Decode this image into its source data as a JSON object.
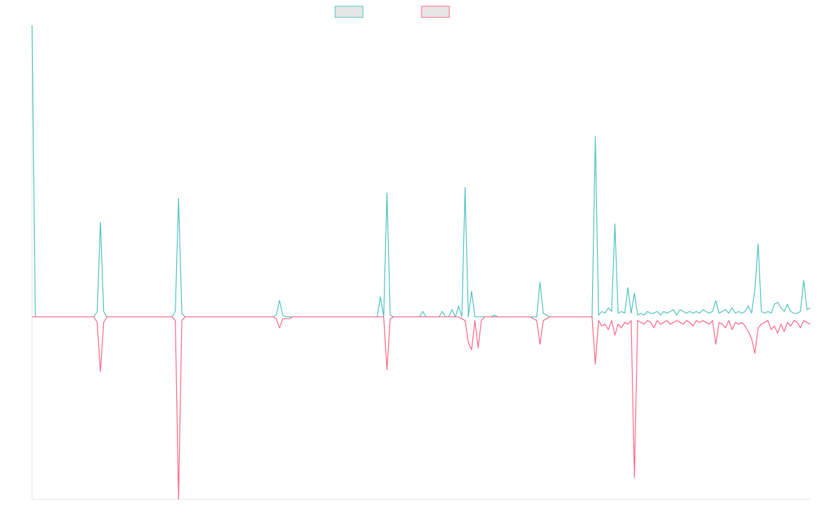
{
  "chart_data": {
    "type": "line",
    "title": "",
    "xlabel": "",
    "ylabel": "",
    "grid": false,
    "legend": {
      "placement": "top-center",
      "entries": [
        {
          "color": "#4bc0c0",
          "fill": "#e6e6e6"
        },
        {
          "color": "#ff6384",
          "fill": "#e6e6e6"
        }
      ]
    },
    "x_count": 240,
    "ylim": [
      -100,
      160
    ],
    "colors": {
      "series_positive": "#4bc0c0",
      "series_negative": "#ff6384",
      "axis": "#e0e0e0"
    },
    "series": [
      {
        "color": "#4bc0c0",
        "points": [
          [
            0,
            160
          ],
          [
            1,
            0
          ],
          [
            19,
            0
          ],
          [
            20,
            3
          ],
          [
            21,
            52
          ],
          [
            22,
            3
          ],
          [
            23,
            0
          ],
          [
            43,
            0
          ],
          [
            44,
            3
          ],
          [
            45,
            65
          ],
          [
            46,
            2
          ],
          [
            47,
            0
          ],
          [
            74,
            0
          ],
          [
            75,
            1
          ],
          [
            76,
            9
          ],
          [
            77,
            1
          ],
          [
            78,
            0
          ],
          [
            106,
            0
          ],
          [
            107,
            11
          ],
          [
            108,
            0
          ],
          [
            109,
            68
          ],
          [
            110,
            1
          ],
          [
            111,
            0
          ],
          [
            119,
            0
          ],
          [
            120,
            3
          ],
          [
            121,
            0
          ],
          [
            125,
            0
          ],
          [
            126,
            3
          ],
          [
            127,
            0
          ],
          [
            128,
            0
          ],
          [
            129,
            4
          ],
          [
            130,
            0
          ],
          [
            131,
            6
          ],
          [
            132,
            0
          ],
          [
            133,
            71
          ],
          [
            134,
            0
          ],
          [
            135,
            14
          ],
          [
            136,
            0
          ],
          [
            141,
            0
          ],
          [
            142,
            1
          ],
          [
            143,
            0
          ],
          [
            153,
            0
          ],
          [
            154,
            0
          ],
          [
            155,
            0
          ],
          [
            156,
            19
          ],
          [
            157,
            2
          ],
          [
            158,
            1
          ],
          [
            159,
            0
          ],
          [
            172,
            0
          ],
          [
            173,
            99
          ],
          [
            174,
            1
          ],
          [
            175,
            3
          ],
          [
            176,
            2
          ],
          [
            177,
            5
          ],
          [
            178,
            3
          ],
          [
            179,
            51
          ],
          [
            180,
            2
          ],
          [
            181,
            3
          ],
          [
            182,
            2
          ],
          [
            183,
            16
          ],
          [
            184,
            2
          ],
          [
            185,
            13
          ],
          [
            186,
            1
          ],
          [
            187,
            2
          ],
          [
            188,
            1
          ],
          [
            189,
            3
          ],
          [
            190,
            2
          ],
          [
            191,
            2
          ],
          [
            192,
            3
          ],
          [
            193,
            1
          ],
          [
            194,
            3
          ],
          [
            195,
            2
          ],
          [
            196,
            3
          ],
          [
            197,
            4
          ],
          [
            198,
            1
          ],
          [
            199,
            4
          ],
          [
            200,
            3
          ],
          [
            201,
            2
          ],
          [
            202,
            3
          ],
          [
            203,
            2
          ],
          [
            204,
            3
          ],
          [
            205,
            2
          ],
          [
            206,
            4
          ],
          [
            207,
            3
          ],
          [
            208,
            2
          ],
          [
            209,
            3
          ],
          [
            210,
            9
          ],
          [
            211,
            2
          ],
          [
            212,
            3
          ],
          [
            213,
            4
          ],
          [
            214,
            2
          ],
          [
            215,
            5
          ],
          [
            216,
            2
          ],
          [
            217,
            3
          ],
          [
            218,
            2
          ],
          [
            219,
            3
          ],
          [
            220,
            6
          ],
          [
            221,
            2
          ],
          [
            222,
            15
          ],
          [
            223,
            40
          ],
          [
            224,
            3
          ],
          [
            225,
            2
          ],
          [
            226,
            3
          ],
          [
            227,
            2
          ],
          [
            228,
            7
          ],
          [
            229,
            8
          ],
          [
            230,
            5
          ],
          [
            231,
            3
          ],
          [
            232,
            7
          ],
          [
            233,
            3
          ],
          [
            234,
            2
          ],
          [
            235,
            2
          ],
          [
            236,
            3
          ],
          [
            237,
            20
          ],
          [
            238,
            4
          ],
          [
            239,
            5
          ]
        ]
      },
      {
        "color": "#ff6384",
        "points": [
          [
            0,
            0
          ],
          [
            19,
            0
          ],
          [
            20,
            -3
          ],
          [
            21,
            -30
          ],
          [
            22,
            -3
          ],
          [
            23,
            0
          ],
          [
            43,
            0
          ],
          [
            44,
            -2
          ],
          [
            45,
            -100
          ],
          [
            46,
            -2
          ],
          [
            47,
            0
          ],
          [
            74,
            0
          ],
          [
            75,
            -1
          ],
          [
            76,
            -6
          ],
          [
            77,
            -1
          ],
          [
            78,
            -1
          ],
          [
            79,
            -1
          ],
          [
            80,
            0
          ],
          [
            106,
            0
          ],
          [
            107,
            0
          ],
          [
            108,
            0
          ],
          [
            109,
            -29
          ],
          [
            110,
            -1
          ],
          [
            111,
            0
          ],
          [
            131,
            0
          ],
          [
            132,
            -1
          ],
          [
            133,
            -2
          ],
          [
            134,
            -14
          ],
          [
            135,
            -18
          ],
          [
            136,
            -2
          ],
          [
            137,
            -17
          ],
          [
            138,
            -2
          ],
          [
            139,
            0
          ],
          [
            153,
            0
          ],
          [
            154,
            -1
          ],
          [
            155,
            -2
          ],
          [
            156,
            -15
          ],
          [
            157,
            -2
          ],
          [
            158,
            -1
          ],
          [
            159,
            0
          ],
          [
            172,
            0
          ],
          [
            173,
            -26
          ],
          [
            174,
            -2
          ],
          [
            175,
            -5
          ],
          [
            176,
            -4
          ],
          [
            177,
            -7
          ],
          [
            178,
            -2
          ],
          [
            179,
            -10
          ],
          [
            180,
            -4
          ],
          [
            181,
            -6
          ],
          [
            182,
            -3
          ],
          [
            183,
            -4
          ],
          [
            184,
            -2
          ],
          [
            185,
            -88
          ],
          [
            186,
            -2
          ],
          [
            187,
            -3
          ],
          [
            188,
            -4
          ],
          [
            189,
            -2
          ],
          [
            190,
            -3
          ],
          [
            191,
            -6
          ],
          [
            192,
            -2
          ],
          [
            193,
            -4
          ],
          [
            194,
            -3
          ],
          [
            195,
            -2
          ],
          [
            196,
            -4
          ],
          [
            197,
            -3
          ],
          [
            198,
            -2
          ],
          [
            199,
            -3
          ],
          [
            200,
            -4
          ],
          [
            201,
            -2
          ],
          [
            202,
            -3
          ],
          [
            203,
            -5
          ],
          [
            204,
            -2
          ],
          [
            205,
            -3
          ],
          [
            206,
            -2
          ],
          [
            207,
            -3
          ],
          [
            208,
            -4
          ],
          [
            209,
            -2
          ],
          [
            210,
            -15
          ],
          [
            211,
            -3
          ],
          [
            212,
            -4
          ],
          [
            213,
            -6
          ],
          [
            214,
            -2
          ],
          [
            215,
            -7
          ],
          [
            216,
            -3
          ],
          [
            217,
            -4
          ],
          [
            218,
            -3
          ],
          [
            219,
            -5
          ],
          [
            220,
            -8
          ],
          [
            221,
            -12
          ],
          [
            222,
            -20
          ],
          [
            223,
            -6
          ],
          [
            224,
            -4
          ],
          [
            225,
            -3
          ],
          [
            226,
            -2
          ],
          [
            227,
            -7
          ],
          [
            228,
            -5
          ],
          [
            229,
            -9
          ],
          [
            230,
            -4
          ],
          [
            231,
            -8
          ],
          [
            232,
            -3
          ],
          [
            233,
            -5
          ],
          [
            234,
            -2
          ],
          [
            235,
            -3
          ],
          [
            236,
            -6
          ],
          [
            237,
            -2
          ],
          [
            238,
            -3
          ],
          [
            239,
            -4
          ]
        ]
      }
    ]
  }
}
